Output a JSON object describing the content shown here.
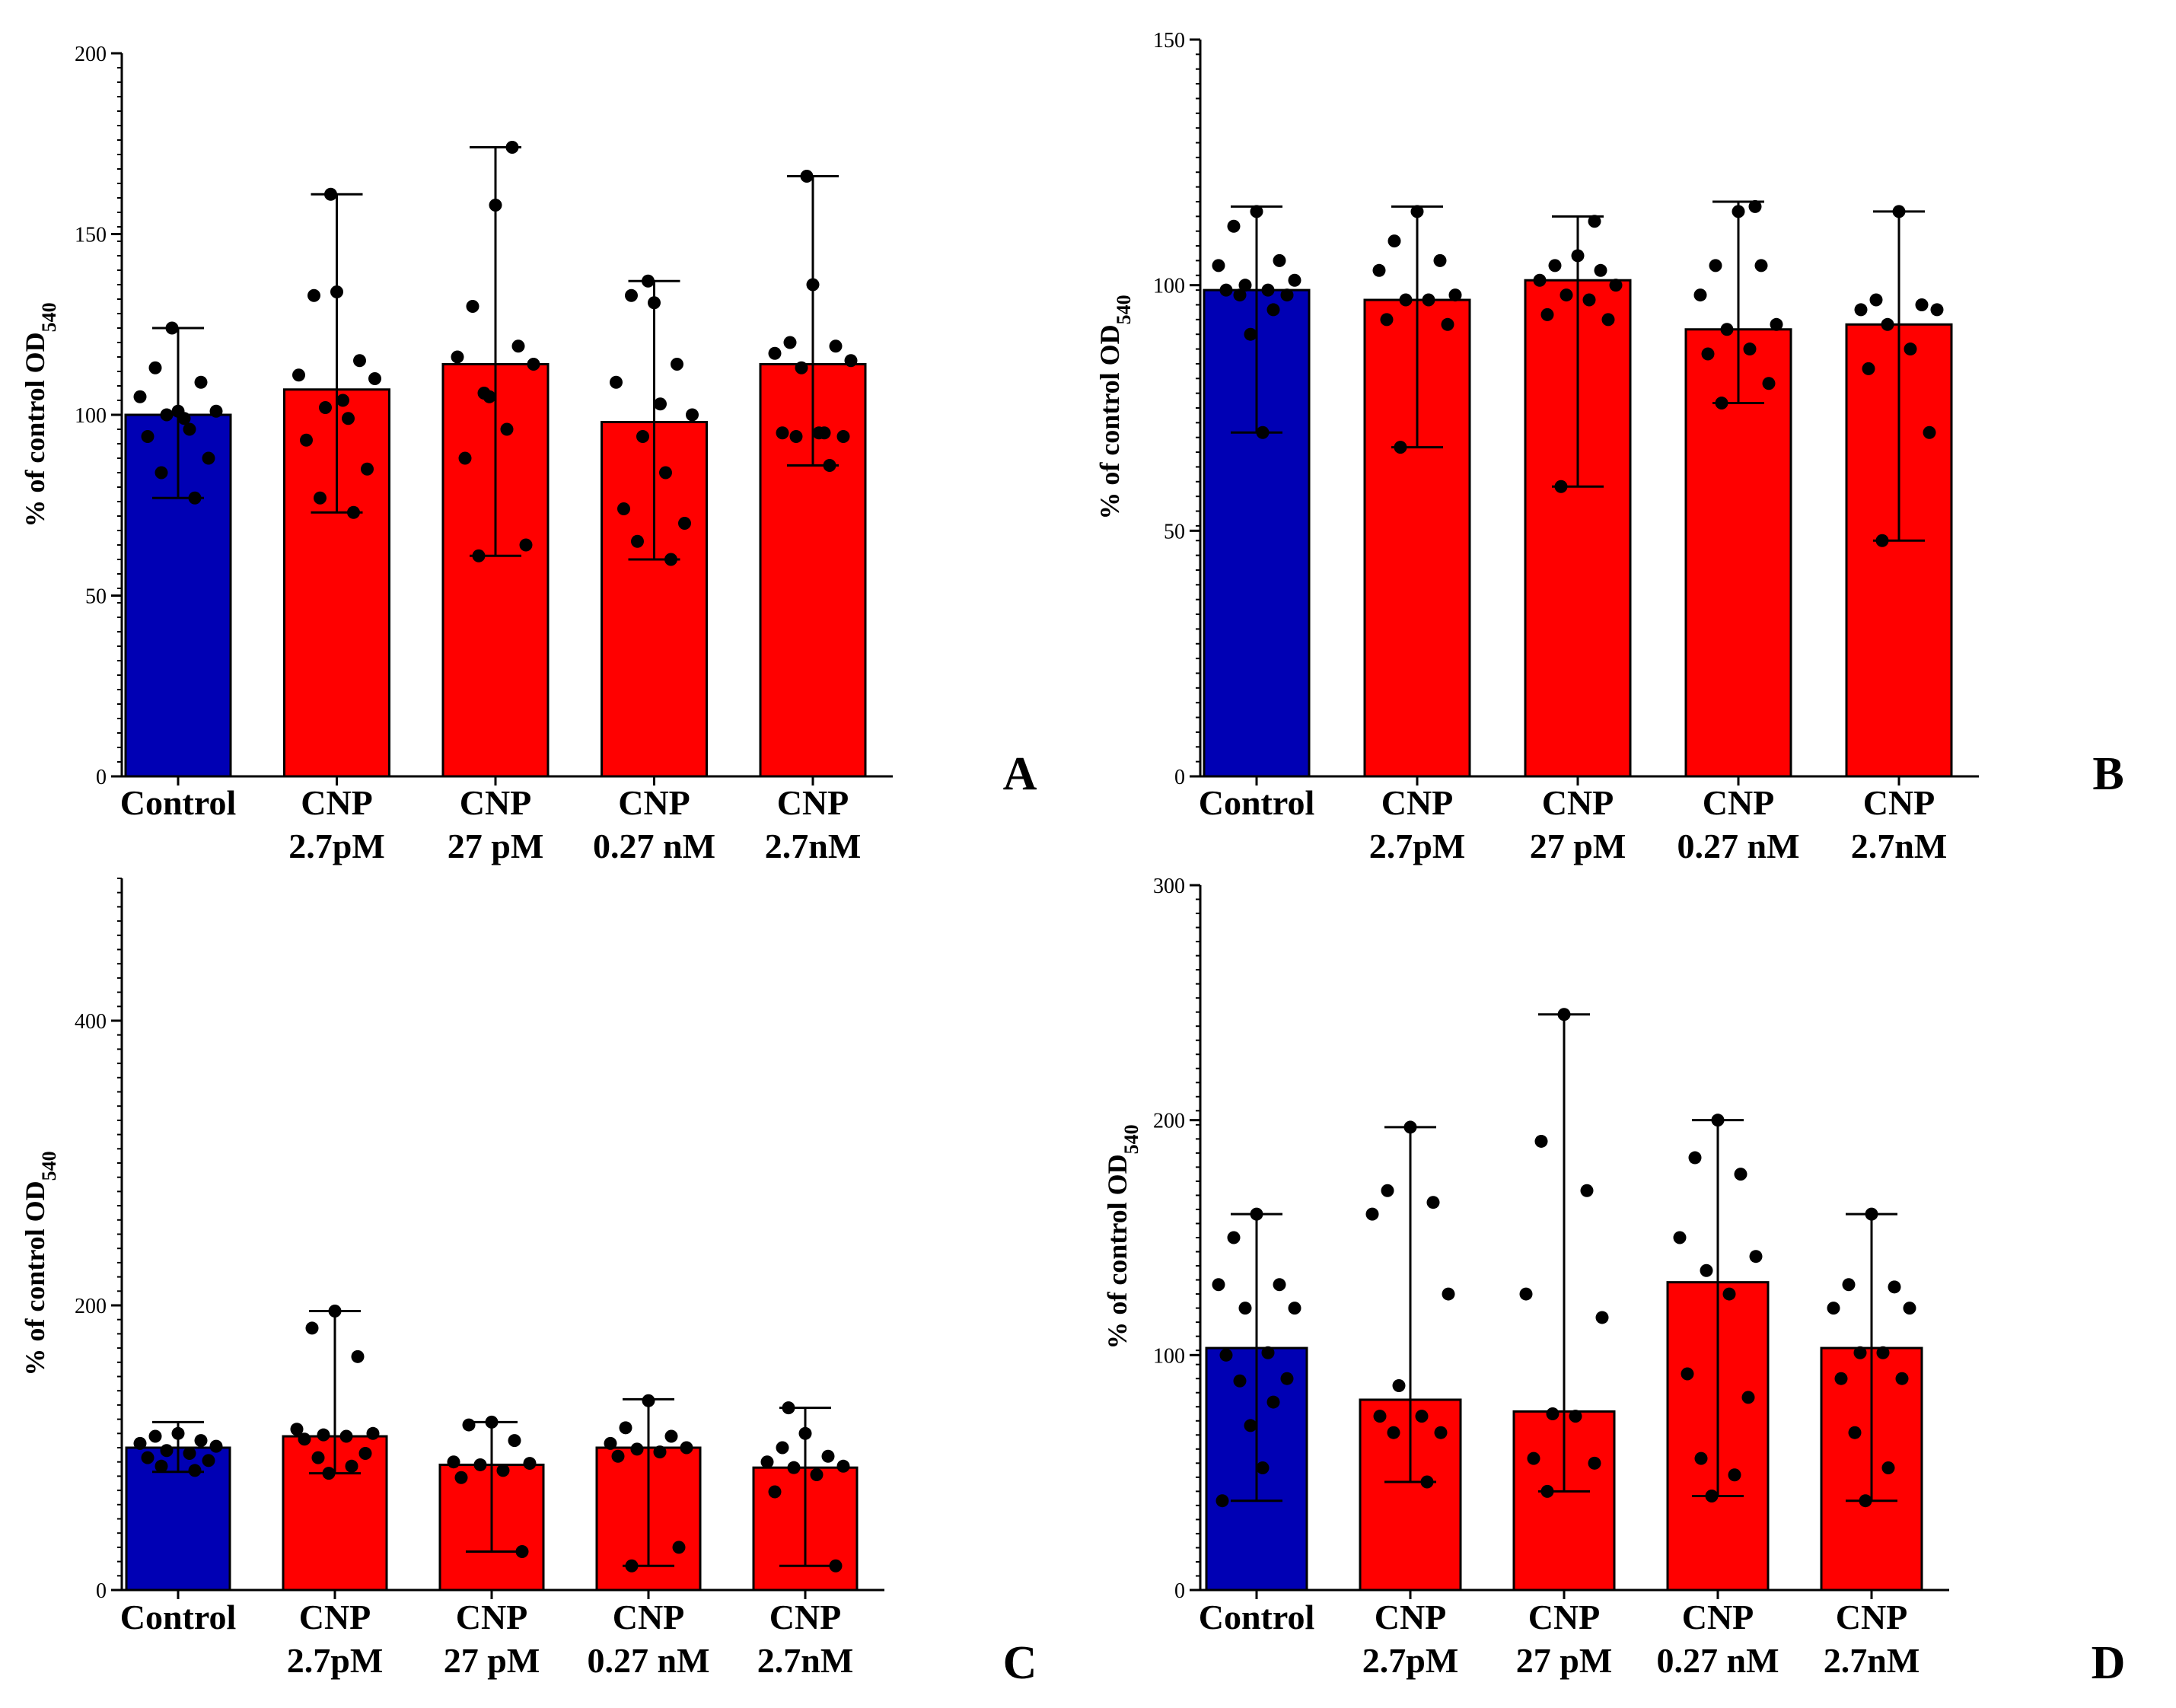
{
  "colors": {
    "control": "#0000b4",
    "treatment": "#ff0000",
    "axis": "#000000",
    "point": "#000000"
  },
  "chart_data": [
    {
      "type": "bar",
      "panel_label": "A",
      "ylabel": "% of control OD",
      "ylabel_subscript": "540",
      "ylim": [
        0,
        200
      ],
      "y_ticks": [
        0,
        50,
        100,
        150,
        200
      ],
      "categories": [
        [
          "Control"
        ],
        [
          "CNP",
          "2.7pM"
        ],
        [
          "CNP",
          "27 pM"
        ],
        [
          "CNP",
          "0.27 nM"
        ],
        [
          "CNP",
          "2.7nM"
        ]
      ],
      "series": [
        {
          "name": "mean",
          "values": [
            100,
            107,
            114,
            98,
            114
          ]
        }
      ],
      "error_min": [
        77,
        73,
        61,
        60,
        86
      ],
      "error_max": [
        124,
        161,
        174,
        137,
        166
      ],
      "points": [
        [
          101,
          113,
          109,
          105,
          101,
          100,
          96,
          94,
          88,
          84,
          77,
          124,
          99
        ],
        [
          134,
          133,
          115,
          111,
          110,
          102,
          99,
          93,
          85,
          77,
          73,
          161,
          104
        ],
        [
          158,
          130,
          119,
          116,
          114,
          106,
          96,
          88,
          64,
          61,
          174,
          105
        ],
        [
          131,
          133,
          114,
          109,
          100,
          94,
          84,
          74,
          70,
          65,
          60,
          137,
          103
        ],
        [
          136,
          120,
          119,
          117,
          115,
          113,
          95,
          95,
          94,
          94,
          86,
          166,
          95
        ]
      ]
    },
    {
      "type": "bar",
      "panel_label": "B",
      "ylabel": "% of control OD",
      "ylabel_subscript": "540",
      "ylim": [
        0,
        150
      ],
      "y_ticks": [
        0,
        50,
        100,
        150
      ],
      "categories": [
        [
          "Control"
        ],
        [
          "CNP",
          "2.7pM"
        ],
        [
          "CNP",
          "27 pM"
        ],
        [
          "CNP",
          "0.27 nM"
        ],
        [
          "CNP",
          "2.7nM"
        ]
      ],
      "series": [
        {
          "name": "mean",
          "values": [
            99,
            97,
            101,
            91,
            92
          ]
        }
      ],
      "error_min": [
        70,
        67,
        59,
        76,
        48
      ],
      "error_max": [
        116,
        116,
        114,
        117,
        115
      ],
      "points": [
        [
          115,
          112,
          105,
          104,
          101,
          100,
          99,
          99,
          98,
          98,
          95,
          90,
          70
        ],
        [
          115,
          109,
          105,
          103,
          98,
          97,
          97,
          93,
          92,
          67
        ],
        [
          106,
          104,
          103,
          101,
          100,
          98,
          97,
          94,
          93,
          59,
          113
        ],
        [
          115,
          104,
          104,
          98,
          92,
          91,
          87,
          86,
          80,
          76,
          116
        ],
        [
          115,
          97,
          96,
          95,
          95,
          92,
          87,
          83,
          70,
          48
        ]
      ]
    },
    {
      "type": "bar",
      "panel_label": "C",
      "ylabel": "% of control OD",
      "ylabel_subscript": "540",
      "ylim": [
        0,
        500
      ],
      "y_ticks": [
        0,
        200,
        400
      ],
      "categories": [
        [
          "Control"
        ],
        [
          "CNP",
          "2.7pM"
        ],
        [
          "CNP",
          "27 pM"
        ],
        [
          "CNP",
          "0.27 nM"
        ],
        [
          "CNP",
          "2.7nM"
        ]
      ],
      "series": [
        {
          "name": "mean",
          "values": [
            100,
            108,
            88,
            100,
            86
          ]
        }
      ],
      "error_min": [
        83,
        82,
        27,
        17,
        17
      ],
      "error_max": [
        118,
        196,
        118,
        134,
        128
      ],
      "points": [
        [
          110,
          108,
          105,
          103,
          101,
          98,
          96,
          93,
          91,
          87,
          84
        ],
        [
          196,
          184,
          164,
          113,
          110,
          109,
          108,
          106,
          96,
          93,
          87,
          82
        ],
        [
          118,
          116,
          105,
          90,
          89,
          88,
          84,
          79,
          27
        ],
        [
          133,
          114,
          108,
          103,
          100,
          99,
          97,
          94,
          30,
          17
        ],
        [
          110,
          100,
          94,
          90,
          87,
          86,
          81,
          69,
          17,
          128
        ]
      ]
    },
    {
      "type": "bar",
      "panel_label": "D",
      "ylabel": "% of control OD",
      "ylabel_subscript": "540",
      "ylim": [
        0,
        300
      ],
      "y_ticks": [
        0,
        100,
        200,
        300
      ],
      "categories": [
        [
          "Control"
        ],
        [
          "CNP",
          "2.7pM"
        ],
        [
          "CNP",
          "27 pM"
        ],
        [
          "CNP",
          "0.27 nM"
        ],
        [
          "CNP",
          "2.7nM"
        ]
      ],
      "series": [
        {
          "name": "mean",
          "values": [
            103,
            81,
            76,
            131,
            103
          ]
        }
      ],
      "error_min": [
        38,
        46,
        42,
        40,
        38
      ],
      "error_max": [
        160,
        197,
        245,
        200,
        160
      ],
      "points": [
        [
          160,
          150,
          130,
          130,
          120,
          120,
          101,
          100,
          90,
          89,
          80,
          70,
          52,
          38
        ],
        [
          197,
          170,
          165,
          160,
          126,
          87,
          74,
          74,
          67,
          67,
          46
        ],
        [
          245,
          191,
          170,
          126,
          116,
          75,
          74,
          56,
          54,
          42
        ],
        [
          200,
          184,
          177,
          150,
          142,
          136,
          126,
          92,
          82,
          56,
          49,
          40
        ],
        [
          160,
          130,
          129,
          120,
          120,
          101,
          101,
          90,
          90,
          67,
          52,
          38
        ]
      ]
    }
  ]
}
